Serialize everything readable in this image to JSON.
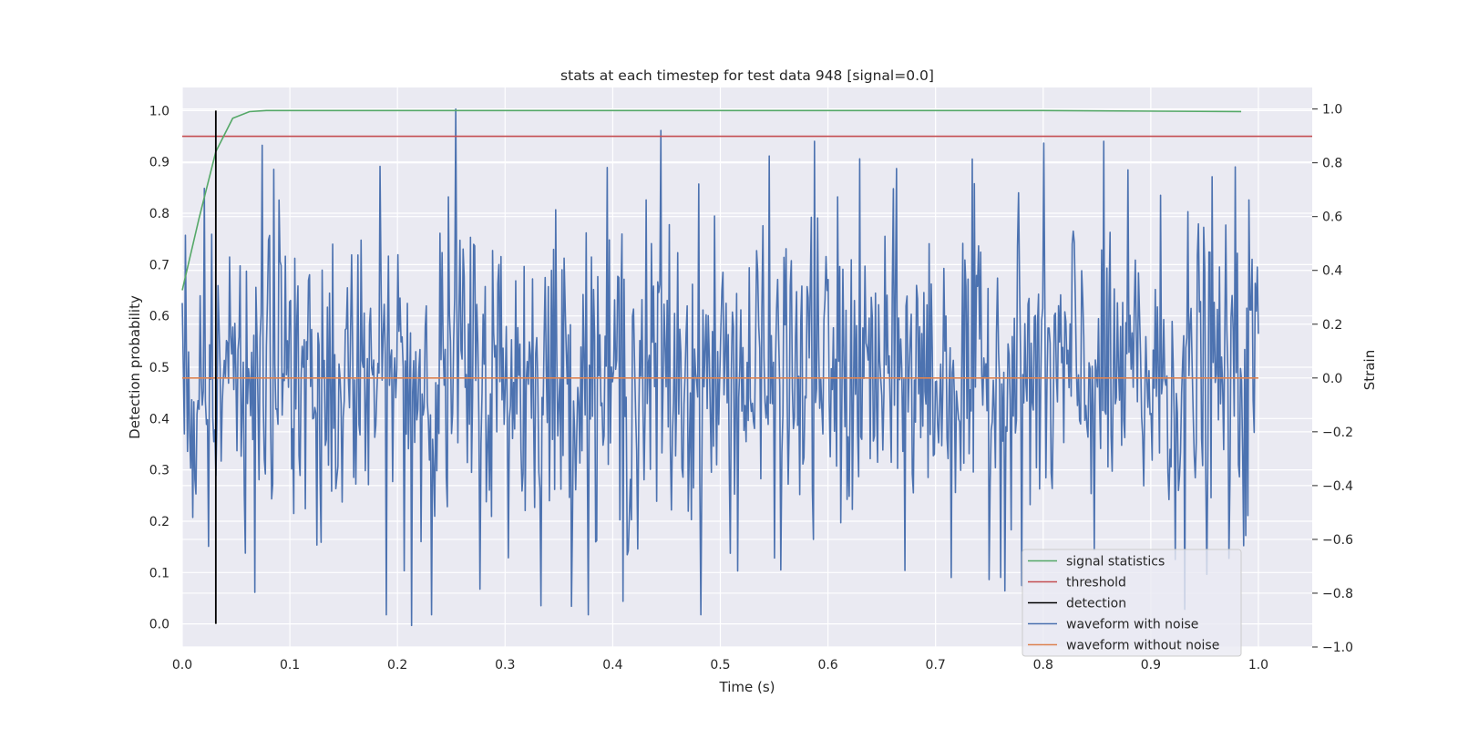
{
  "chart_data": {
    "type": "line",
    "title": "stats at each timestep for test data 948 [signal=0.0]",
    "xlabel": "Time (s)",
    "ylabel_left": "Detection probability",
    "ylabel_right": "Strain",
    "xlim": [
      0.0,
      1.05
    ],
    "ylim_left": [
      -0.045,
      1.045
    ],
    "ylim_right": [
      -1.0,
      1.08
    ],
    "x_ticks": [
      "0.0",
      "0.1",
      "0.2",
      "0.3",
      "0.4",
      "0.5",
      "0.6",
      "0.7",
      "0.8",
      "0.9",
      "1.0"
    ],
    "y_ticks_left": [
      "0.0",
      "0.1",
      "0.2",
      "0.3",
      "0.4",
      "0.5",
      "0.6",
      "0.7",
      "0.8",
      "0.9",
      "1.0"
    ],
    "y_ticks_right": [
      "−1.0",
      "−0.8",
      "−0.6",
      "−0.4",
      "−0.2",
      "0.0",
      "0.2",
      "0.4",
      "0.6",
      "0.8",
      "1.0"
    ],
    "y_tick_values_right": [
      -1.0,
      -0.8,
      -0.6,
      -0.4,
      -0.2,
      0.0,
      0.2,
      0.4,
      0.6,
      0.8,
      1.0
    ],
    "grid": true,
    "legend_placement": "lower-right",
    "series": [
      {
        "name": "signal statistics",
        "axis": "left",
        "color": "#55a868",
        "x": [
          0.0,
          0.0156,
          0.0312,
          0.0469,
          0.0625,
          0.0781,
          0.1,
          0.2,
          0.4,
          0.6,
          0.8,
          0.984
        ],
        "y": [
          0.65,
          0.79,
          0.92,
          0.985,
          0.998,
          1.0,
          1.0,
          1.0,
          1.0,
          1.0,
          1.0,
          0.998
        ]
      },
      {
        "name": "threshold",
        "axis": "left",
        "color": "#c44e52",
        "x": [
          0.0,
          1.05
        ],
        "y": [
          0.95,
          0.95
        ]
      },
      {
        "name": "detection",
        "axis": "left",
        "color": "#000000",
        "x": [
          0.0312,
          0.0312
        ],
        "y": [
          0.0,
          1.0
        ]
      },
      {
        "name": "waveform with noise",
        "axis": "right",
        "color": "#4c72b0",
        "n_points": 1024,
        "x_range": [
          0.0,
          1.0
        ],
        "std": 0.3,
        "max": 1.0,
        "min": -0.92,
        "note_values": "random noise around 0"
      },
      {
        "name": "waveform without noise",
        "axis": "right",
        "color": "#dd8452",
        "x": [
          0.0,
          1.0
        ],
        "y": [
          0.0,
          0.0
        ]
      }
    ]
  },
  "colors": {
    "plot_background": "#eaeaf2",
    "grid": "#ffffff"
  }
}
